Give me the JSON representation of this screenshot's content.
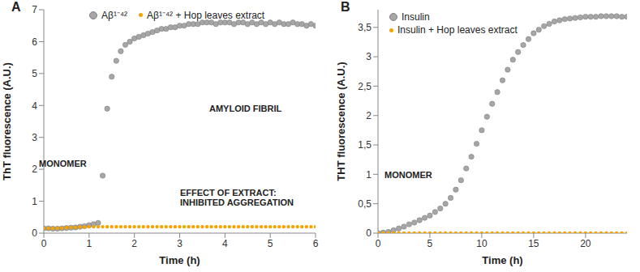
{
  "chart_data": [
    {
      "type": "scatter",
      "title": "A",
      "x_label": "Time (h)",
      "y_label": "ThT fluorescence (A.U.)",
      "xlim": [
        0,
        6
      ],
      "xticks": [
        0,
        1,
        2,
        3,
        4,
        5,
        6
      ],
      "ylim": [
        0,
        7
      ],
      "yticks": [
        0,
        1,
        2,
        3,
        4,
        5,
        6,
        7
      ],
      "legend": "top",
      "annotations": [
        "MONOMER",
        "AMYLOID FIBRIL",
        "EFFECT OF EXTRACT: INHIBITED AGGREGATION"
      ],
      "x": [
        0,
        0.1,
        0.2,
        0.3,
        0.4,
        0.5,
        0.6,
        0.7,
        0.8,
        0.9,
        1.0,
        1.1,
        1.2,
        1.3,
        1.4,
        1.5,
        1.6,
        1.7,
        1.8,
        1.9,
        2.0,
        2.1,
        2.2,
        2.3,
        2.4,
        2.5,
        2.6,
        2.7,
        2.8,
        2.9,
        3.0,
        3.1,
        3.2,
        3.3,
        3.4,
        3.5,
        3.6,
        3.7,
        3.8,
        3.9,
        4.0,
        4.1,
        4.2,
        4.3,
        4.4,
        4.5,
        4.6,
        4.7,
        4.8,
        4.9,
        5.0,
        5.1,
        5.2,
        5.3,
        5.4,
        5.5,
        5.6,
        5.7,
        5.8,
        5.9,
        6.0
      ],
      "series": [
        {
          "name": "Aβ¹⁻⁴²",
          "color": "#a6a6a6",
          "marker": "circle",
          "values": [
            0.15,
            0.15,
            0.14,
            0.14,
            0.15,
            0.16,
            0.17,
            0.18,
            0.2,
            0.22,
            0.25,
            0.28,
            0.32,
            1.8,
            3.9,
            4.9,
            5.4,
            5.7,
            5.9,
            6.0,
            6.1,
            6.15,
            6.2,
            6.25,
            6.3,
            6.35,
            6.4,
            6.4,
            6.45,
            6.45,
            6.5,
            6.5,
            6.55,
            6.55,
            6.55,
            6.6,
            6.6,
            6.6,
            6.55,
            6.6,
            6.6,
            6.6,
            6.55,
            6.6,
            6.6,
            6.55,
            6.6,
            6.55,
            6.6,
            6.55,
            6.6,
            6.55,
            6.6,
            6.55,
            6.55,
            6.6,
            6.55,
            6.55,
            6.5,
            6.55,
            6.5
          ]
        },
        {
          "name": "Aβ¹⁻⁴² + Hop leaves extract",
          "color": "#f5a300",
          "marker": "dot",
          "values": [
            0.15,
            0.15,
            0.15,
            0.16,
            0.16,
            0.17,
            0.18,
            0.18,
            0.19,
            0.19,
            0.2,
            0.2,
            0.2,
            0.2,
            0.2,
            0.2,
            0.2,
            0.2,
            0.2,
            0.2,
            0.2,
            0.2,
            0.2,
            0.2,
            0.2,
            0.2,
            0.2,
            0.2,
            0.2,
            0.2,
            0.2,
            0.2,
            0.2,
            0.2,
            0.2,
            0.2,
            0.2,
            0.2,
            0.2,
            0.2,
            0.2,
            0.2,
            0.2,
            0.2,
            0.2,
            0.2,
            0.2,
            0.2,
            0.2,
            0.2,
            0.2,
            0.2,
            0.2,
            0.2,
            0.2,
            0.2,
            0.2,
            0.2,
            0.2,
            0.2,
            0.2
          ]
        }
      ]
    },
    {
      "type": "scatter",
      "title": "B",
      "x_label": "Time (h)",
      "y_label": "THT fluorescence (A.U.)",
      "xlim": [
        0,
        24
      ],
      "xticks": [
        0,
        5,
        10,
        15,
        20
      ],
      "ylim": [
        0,
        3.8
      ],
      "yticks": [
        0,
        {
          "value": 0.5,
          "label": "0,5"
        },
        1,
        {
          "value": 1.5,
          "label": "1,5"
        },
        2,
        {
          "value": 2.5,
          "label": "2,5"
        },
        3,
        {
          "value": 3.5,
          "label": "3,5"
        }
      ],
      "legend": "top left",
      "annotations": [
        "MONOMER"
      ],
      "x": [
        0,
        0.5,
        1,
        1.5,
        2,
        2.5,
        3,
        3.5,
        4,
        4.5,
        5,
        5.5,
        6,
        6.5,
        7,
        7.5,
        8,
        8.5,
        9,
        9.5,
        10,
        10.5,
        11,
        11.5,
        12,
        12.5,
        13,
        13.5,
        14,
        14.5,
        15,
        15.5,
        16,
        16.5,
        17,
        17.5,
        18,
        18.5,
        19,
        19.5,
        20,
        20.5,
        21,
        21.5,
        22,
        22.5,
        23,
        23.5,
        24
      ],
      "series": [
        {
          "name": "Insulin",
          "color": "#a6a6a6",
          "marker": "circle",
          "values": [
            0,
            0.01,
            0.02,
            0.05,
            0.08,
            0.11,
            0.15,
            0.18,
            0.22,
            0.26,
            0.3,
            0.36,
            0.42,
            0.5,
            0.6,
            0.74,
            0.9,
            1.1,
            1.3,
            1.52,
            1.75,
            1.98,
            2.2,
            2.4,
            2.6,
            2.78,
            2.95,
            3.08,
            3.2,
            3.3,
            3.4,
            3.46,
            3.52,
            3.56,
            3.6,
            3.62,
            3.64,
            3.65,
            3.66,
            3.67,
            3.68,
            3.68,
            3.68,
            3.69,
            3.69,
            3.69,
            3.69,
            3.68,
            3.68
          ]
        },
        {
          "name": "Insulin + Hop leaves extract",
          "color": "#f5a300",
          "marker": "dot",
          "values": [
            0,
            0,
            0,
            0,
            0,
            0,
            0,
            0,
            0,
            0,
            0,
            0,
            0,
            0,
            0,
            0,
            0,
            0,
            0,
            0,
            0,
            0,
            0,
            0,
            0,
            0,
            0,
            0,
            0,
            0,
            0,
            0,
            0,
            0,
            0,
            0,
            0,
            0,
            0,
            0,
            0,
            0,
            0,
            0,
            0,
            0,
            0,
            0,
            0
          ]
        }
      ]
    }
  ]
}
